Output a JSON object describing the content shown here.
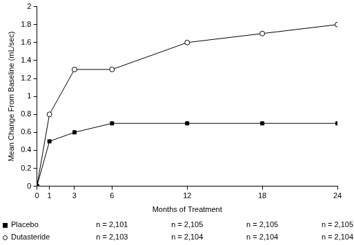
{
  "chart_data": {
    "type": "line",
    "x_label": "Months of Treatment",
    "y_label": "Mean Change From Baseline (mL/sec)",
    "x": [
      0,
      1,
      3,
      6,
      12,
      18,
      24
    ],
    "series": [
      {
        "name": "Placebo",
        "color": "#000000",
        "marker": "square",
        "values": [
          0,
          0.5,
          0.6,
          0.7,
          0.7,
          0.7,
          0.7
        ]
      },
      {
        "name": "Dutasteride",
        "color": "#000000",
        "marker": "open_circle",
        "values": [
          0,
          0.8,
          1.3,
          1.3,
          1.6,
          1.7,
          1.8
        ]
      }
    ],
    "xlim": [
      0,
      24
    ],
    "xticks": [
      0,
      1,
      3,
      6,
      12,
      18,
      24
    ],
    "ylim": [
      0,
      2
    ],
    "yticks": [
      0,
      0.2,
      0.4,
      0.6,
      0.8,
      1,
      1.2,
      1.4,
      1.6,
      1.8,
      2
    ],
    "grid": false,
    "legend": "bottom-left",
    "sample_sizes": {
      "x": [
        6,
        12,
        18,
        24
      ],
      "rows": [
        {
          "name": "Placebo",
          "labels": [
            "n = 2,101",
            "n = 2,105",
            "n = 2,105",
            "n = 2,105"
          ]
        },
        {
          "name": "Dutasteride",
          "labels": [
            "n = 2,103",
            "n = 2,104",
            "n = 2,104",
            "n = 2,104"
          ]
        }
      ]
    }
  }
}
